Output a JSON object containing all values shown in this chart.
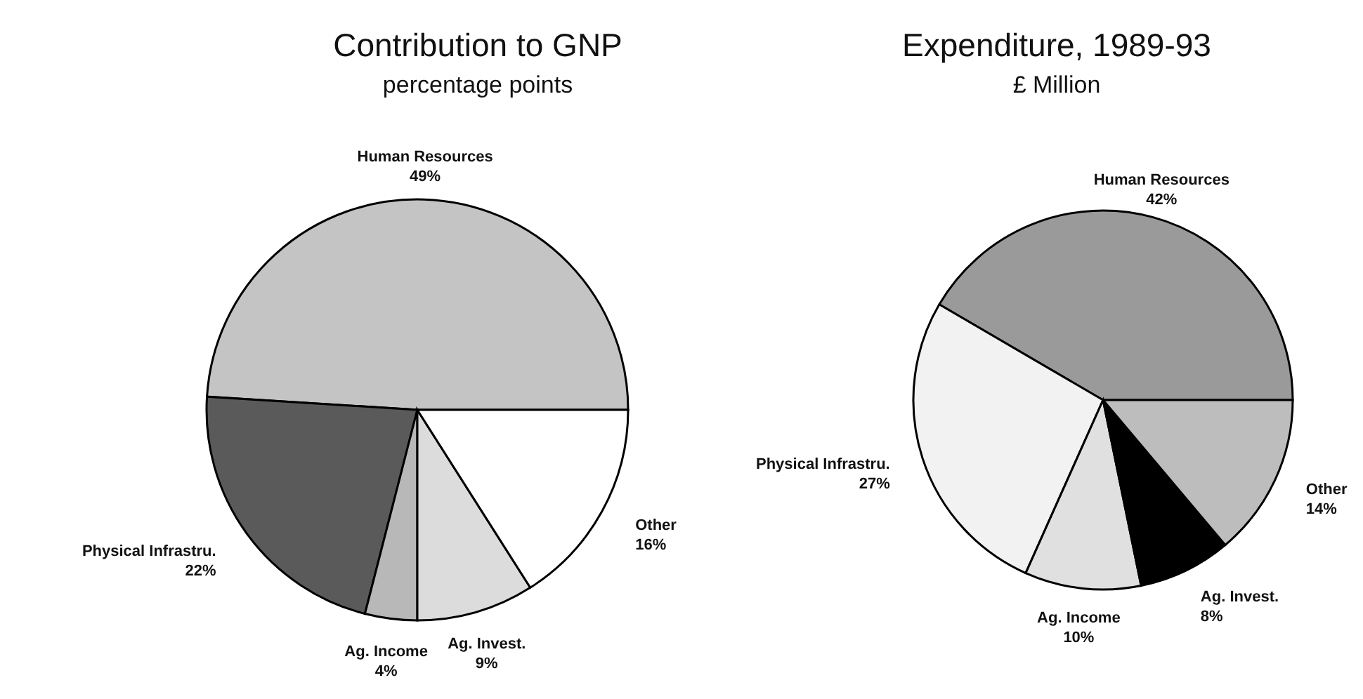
{
  "chart_data": [
    {
      "type": "pie",
      "title": "Contribution to GNP",
      "subtitle": "percentage points",
      "categories": [
        "Human Resources",
        "Physical Infrastru.",
        "Ag. Income",
        "Ag. Invest.",
        "Other"
      ],
      "values": [
        49,
        22,
        4,
        9,
        16
      ],
      "value_labels": [
        "49%",
        "22%",
        "4%",
        "9%",
        "16%"
      ],
      "colors": [
        "#c4c4c4",
        "#5a5a5a",
        "#b8b8b8",
        "#dcdcdc",
        "#ffffff"
      ]
    },
    {
      "type": "pie",
      "title": "Expenditure, 1989-93",
      "subtitle": "£ Million",
      "categories": [
        "Human Resources",
        "Physical Infrastru.",
        "Ag. Income",
        "Ag. Invest.",
        "Other"
      ],
      "values": [
        42,
        27,
        10,
        8,
        14
      ],
      "value_labels": [
        "42%",
        "27%",
        "10%",
        "8%",
        "14%"
      ],
      "colors": [
        "#9a9a9a",
        "#f2f2f2",
        "#e0e0e0",
        "#000000",
        "#bdbdbd"
      ]
    }
  ]
}
